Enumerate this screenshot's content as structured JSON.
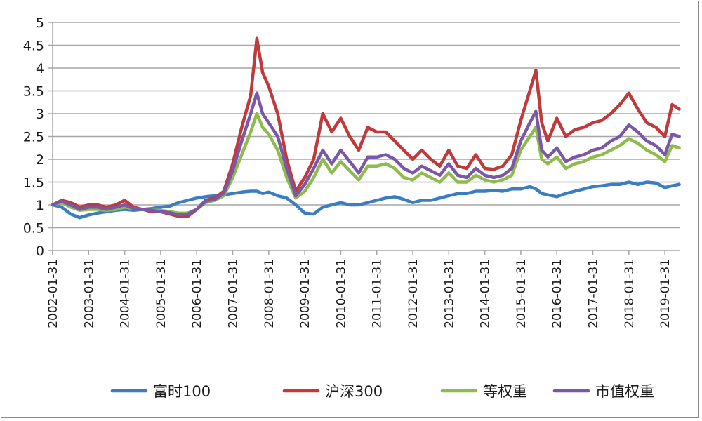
{
  "chart_data": {
    "type": "line",
    "title": "",
    "xlabel": "",
    "ylabel": "",
    "ylim": [
      0,
      5
    ],
    "yticks": [
      "0",
      "0.5",
      "1",
      "1.5",
      "2",
      "2.5",
      "3",
      "3.5",
      "4",
      "4.5",
      "5"
    ],
    "grid": true,
    "legend_position": "bottom",
    "x_tick_labels": [
      "2002-01-31",
      "2003-01-31",
      "2004-01-31",
      "2005-01-31",
      "2006-01-31",
      "2007-01-31",
      "2008-01-31",
      "2009-01-31",
      "2010-01-31",
      "2011-01-31",
      "2012-01-31",
      "2013-01-31",
      "2014-01-31",
      "2015-01-31",
      "2016-01-31",
      "2017-01-31",
      "2018-01-31",
      "2019-01-31"
    ],
    "x": [
      2002.0,
      2002.25,
      2002.5,
      2002.75,
      2003.0,
      2003.25,
      2003.5,
      2003.75,
      2004.0,
      2004.25,
      2004.5,
      2004.75,
      2005.0,
      2005.25,
      2005.5,
      2005.75,
      2006.0,
      2006.25,
      2006.5,
      2006.75,
      2007.0,
      2007.25,
      2007.5,
      2007.67,
      2007.83,
      2008.0,
      2008.25,
      2008.5,
      2008.75,
      2009.0,
      2009.25,
      2009.5,
      2009.75,
      2010.0,
      2010.25,
      2010.5,
      2010.75,
      2011.0,
      2011.25,
      2011.5,
      2011.75,
      2012.0,
      2012.25,
      2012.5,
      2012.75,
      2013.0,
      2013.25,
      2013.5,
      2013.75,
      2014.0,
      2014.25,
      2014.5,
      2014.75,
      2015.0,
      2015.25,
      2015.42,
      2015.58,
      2015.75,
      2016.0,
      2016.25,
      2016.5,
      2016.75,
      2017.0,
      2017.25,
      2017.5,
      2017.75,
      2018.0,
      2018.25,
      2018.5,
      2018.75,
      2019.0,
      2019.2,
      2019.4
    ],
    "series": [
      {
        "name": "富时100",
        "color": "#3b7dc4",
        "values": [
          1.0,
          0.95,
          0.8,
          0.72,
          0.78,
          0.82,
          0.85,
          0.88,
          0.9,
          0.88,
          0.9,
          0.92,
          0.95,
          0.97,
          1.05,
          1.1,
          1.15,
          1.18,
          1.2,
          1.22,
          1.25,
          1.28,
          1.3,
          1.3,
          1.25,
          1.28,
          1.2,
          1.15,
          1.0,
          0.82,
          0.8,
          0.95,
          1.0,
          1.05,
          1.0,
          1.0,
          1.05,
          1.1,
          1.15,
          1.18,
          1.12,
          1.05,
          1.1,
          1.1,
          1.15,
          1.2,
          1.25,
          1.25,
          1.3,
          1.3,
          1.32,
          1.3,
          1.35,
          1.35,
          1.4,
          1.35,
          1.25,
          1.22,
          1.18,
          1.25,
          1.3,
          1.35,
          1.4,
          1.42,
          1.45,
          1.45,
          1.5,
          1.45,
          1.5,
          1.48,
          1.38,
          1.42,
          1.45
        ]
      },
      {
        "name": "沪深300",
        "color": "#c0393b",
        "values": [
          1.0,
          1.1,
          1.05,
          0.95,
          1.0,
          1.0,
          0.95,
          1.0,
          1.1,
          0.95,
          0.9,
          0.85,
          0.85,
          0.8,
          0.75,
          0.75,
          0.9,
          1.1,
          1.15,
          1.3,
          1.9,
          2.7,
          3.4,
          4.65,
          3.9,
          3.6,
          3.0,
          2.0,
          1.3,
          1.6,
          2.0,
          3.0,
          2.6,
          2.9,
          2.5,
          2.2,
          2.7,
          2.6,
          2.6,
          2.4,
          2.2,
          2.0,
          2.2,
          2.0,
          1.85,
          2.2,
          1.85,
          1.8,
          2.1,
          1.8,
          1.78,
          1.85,
          2.1,
          2.85,
          3.5,
          3.95,
          2.8,
          2.4,
          2.9,
          2.5,
          2.65,
          2.7,
          2.8,
          2.85,
          3.0,
          3.2,
          3.45,
          3.1,
          2.8,
          2.7,
          2.5,
          3.2,
          3.1
        ]
      },
      {
        "name": "等权重",
        "color": "#8dbb4c",
        "values": [
          1.0,
          1.05,
          0.95,
          0.88,
          0.9,
          0.9,
          0.88,
          0.9,
          0.95,
          0.92,
          0.9,
          0.88,
          0.88,
          0.85,
          0.82,
          0.82,
          0.9,
          1.05,
          1.1,
          1.2,
          1.6,
          2.1,
          2.6,
          3.0,
          2.7,
          2.55,
          2.2,
          1.6,
          1.15,
          1.3,
          1.6,
          2.0,
          1.7,
          1.95,
          1.75,
          1.55,
          1.85,
          1.85,
          1.9,
          1.8,
          1.6,
          1.55,
          1.7,
          1.6,
          1.5,
          1.7,
          1.5,
          1.5,
          1.65,
          1.55,
          1.5,
          1.55,
          1.65,
          2.2,
          2.5,
          2.7,
          2.0,
          1.9,
          2.05,
          1.8,
          1.9,
          1.95,
          2.05,
          2.1,
          2.2,
          2.3,
          2.45,
          2.35,
          2.2,
          2.1,
          1.95,
          2.3,
          2.25
        ]
      },
      {
        "name": "市值权重",
        "color": "#7a57a8",
        "values": [
          1.0,
          1.08,
          1.0,
          0.9,
          0.95,
          0.95,
          0.9,
          0.95,
          1.0,
          0.92,
          0.9,
          0.88,
          0.85,
          0.83,
          0.78,
          0.8,
          0.9,
          1.08,
          1.12,
          1.25,
          1.75,
          2.4,
          3.0,
          3.45,
          3.0,
          2.8,
          2.5,
          1.8,
          1.2,
          1.45,
          1.8,
          2.2,
          1.9,
          2.2,
          1.95,
          1.7,
          2.05,
          2.05,
          2.1,
          2.0,
          1.8,
          1.7,
          1.85,
          1.75,
          1.65,
          1.9,
          1.65,
          1.6,
          1.8,
          1.65,
          1.6,
          1.65,
          1.8,
          2.4,
          2.8,
          3.05,
          2.2,
          2.05,
          2.25,
          1.95,
          2.05,
          2.1,
          2.2,
          2.25,
          2.4,
          2.5,
          2.75,
          2.6,
          2.4,
          2.3,
          2.1,
          2.55,
          2.5
        ]
      }
    ]
  }
}
